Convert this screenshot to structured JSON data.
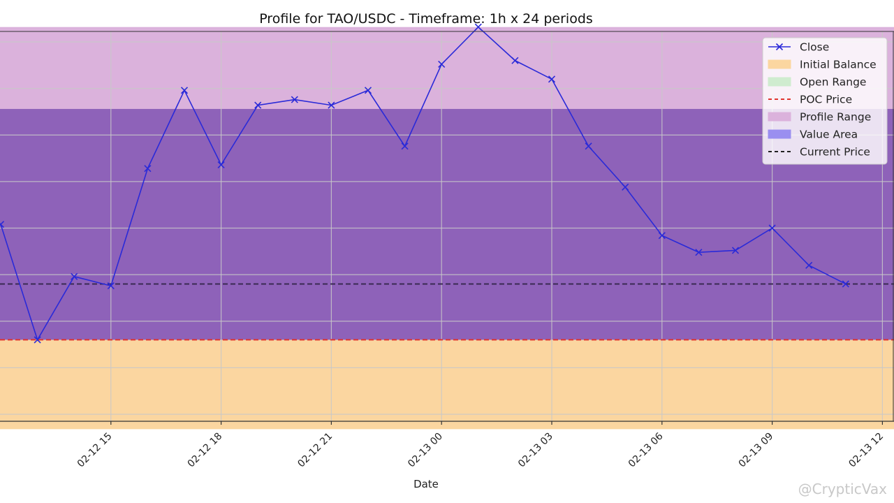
{
  "chart_data": {
    "type": "line",
    "title": "Profile for TAO/USDC - Timeframe: 1h x 24 periods",
    "xlabel": "Date",
    "ylabel": "",
    "grid": true,
    "legend_position": "top-right",
    "x_tick_labels": [
      "02-12 15",
      "02-12 18",
      "02-12 21",
      "02-13 00",
      "02-13 03",
      "02-13 06",
      "02-13 09",
      "02-13 12"
    ],
    "x_tick_hours": [
      3,
      6,
      9,
      12,
      15,
      18,
      21,
      24
    ],
    "x_range_hours": [
      0,
      25
    ],
    "y_range": [
      0,
      100
    ],
    "series": [
      {
        "name": "Close",
        "color": "#2a2ad8",
        "marker": "x",
        "x_hours": [
          0,
          1,
          2,
          3,
          4,
          5,
          6,
          7,
          8,
          9,
          10,
          11,
          12,
          13,
          14,
          15,
          16,
          17,
          18,
          19,
          20,
          21,
          22,
          23
        ],
        "values": [
          51,
          20,
          37,
          34.5,
          66,
          87,
          67,
          83,
          84.5,
          83,
          87,
          72,
          94,
          104,
          95,
          90,
          72,
          61,
          48,
          43.5,
          44,
          50,
          40,
          35
        ]
      }
    ],
    "bands": [
      {
        "name": "Initial Balance",
        "from": -4,
        "to": 20,
        "color": "#fbd6a0"
      },
      {
        "name": "Profile Range",
        "from": 20,
        "to": 104,
        "color": "#dbb2dc"
      },
      {
        "name": "Value Area",
        "from": 20,
        "to": 82,
        "color": "#8e62b9"
      }
    ],
    "reference_lines": [
      {
        "name": "POC Price",
        "value": 20,
        "color": "#e0352f",
        "style": "dashed"
      },
      {
        "name": "Current Price",
        "value": 35,
        "color": "#3a2a52",
        "style": "dashed"
      }
    ],
    "legend": [
      {
        "label": "Close",
        "kind": "line-x",
        "color": "#2a2ad8"
      },
      {
        "label": "Initial Balance",
        "kind": "patch",
        "color": "#fbd6a0"
      },
      {
        "label": "Open Range",
        "kind": "patch",
        "color": "#cfeccf"
      },
      {
        "label": "POC Price",
        "kind": "dash",
        "color": "#e0352f"
      },
      {
        "label": "Profile Range",
        "kind": "patch",
        "color": "#dbb2dc"
      },
      {
        "label": "Value Area",
        "kind": "patch",
        "color": "#9a8ff0"
      },
      {
        "label": "Current Price",
        "kind": "dash",
        "color": "#222222"
      }
    ]
  },
  "watermark": "@CrypticVax"
}
